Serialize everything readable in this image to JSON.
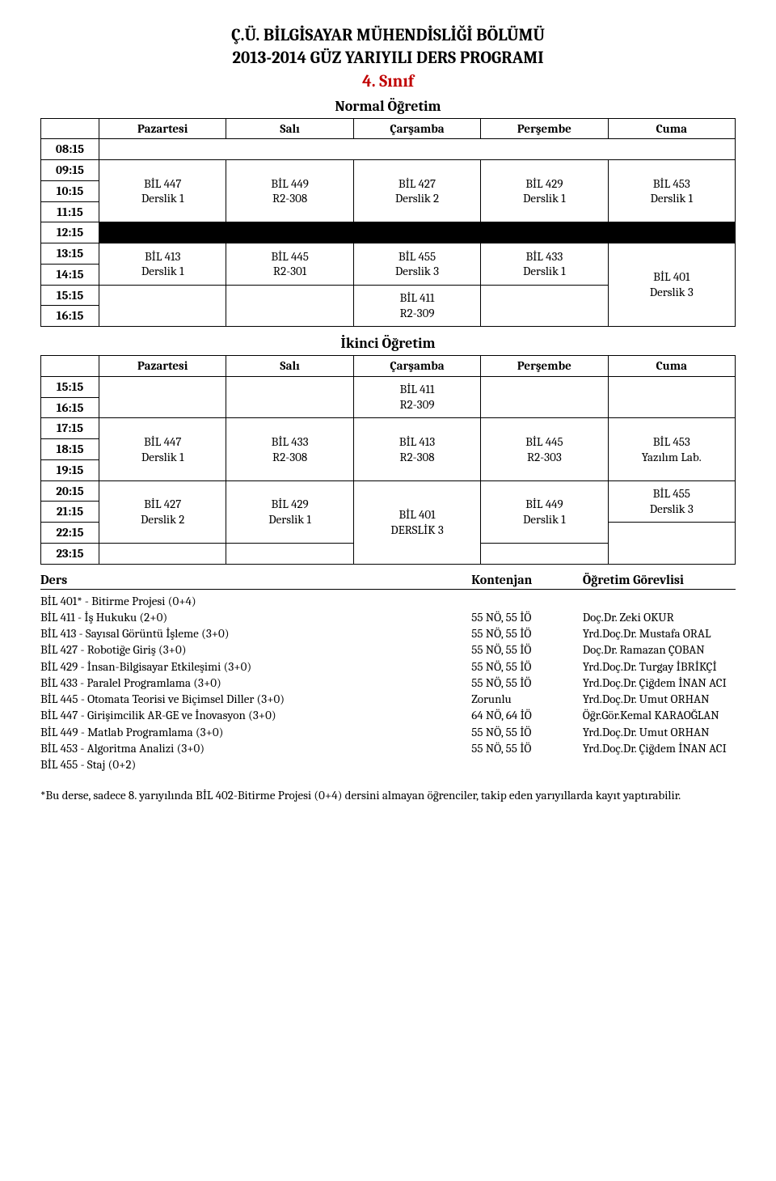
{
  "header": {
    "line1": "Ç.Ü. BİLGİSAYAR MÜHENDİSLİĞİ BÖLÜMÜ",
    "line2": "2013-2014 GÜZ YARIYILI DERS PROGRAMI",
    "year": "4. Sınıf"
  },
  "colors": {
    "year_color": "#c00000",
    "black_row": "#000000"
  },
  "days": [
    "Pazartesi",
    "Salı",
    "Çarşamba",
    "Perşembe",
    "Cuma"
  ],
  "normal": {
    "title": "Normal Öğretim",
    "times": [
      "08:15",
      "09:15",
      "10:15",
      "11:15",
      "12:15",
      "13:15",
      "14:15",
      "15:15",
      "16:15"
    ],
    "block_0915": {
      "mon": {
        "code": "BİL 447",
        "room": "Derslik 1"
      },
      "tue": {
        "code": "BİL 449",
        "room": "R2-308"
      },
      "wed": {
        "code": "BİL 427",
        "room": "Derslik 2"
      },
      "thu": {
        "code": "BİL 429",
        "room": "Derslik 1"
      },
      "fri": {
        "code": "BİL 453",
        "room": "Derslik 1"
      }
    },
    "block_1315": {
      "mon": {
        "code": "BİL 413",
        "room": "Derslik 1"
      },
      "tue": {
        "code": "BİL 445",
        "room": "R2-301"
      },
      "wed_top": {
        "code": "BİL 455",
        "room": "Derslik 3"
      },
      "wed_bot": {
        "code": "BİL 411",
        "room": "R2-309"
      },
      "thu": {
        "code": "BİL 433",
        "room": "Derslik 1"
      },
      "fri": {
        "code": "BİL 401",
        "room": "Derslik 3"
      }
    }
  },
  "ikinci": {
    "title": "İkinci Öğretim",
    "times": [
      "15:15",
      "16:15",
      "17:15",
      "18:15",
      "19:15",
      "20:15",
      "21:15",
      "22:15",
      "23:15"
    ],
    "row1_wed": {
      "code": "BİL 411",
      "room": "R2-309"
    },
    "block_1715": {
      "mon": {
        "code": "BİL 447",
        "room": "Derslik 1"
      },
      "tue": {
        "code": "BİL 433",
        "room": "R2-308"
      },
      "wed": {
        "code": "BİL 413",
        "room": "R2-308"
      },
      "thu": {
        "code": "BİL 445",
        "room": "R2-303"
      },
      "fri": {
        "code": "BİL 453",
        "room": "Yazılım Lab."
      }
    },
    "block_2015": {
      "mon": {
        "code": "BİL 427",
        "room": "Derslik 2"
      },
      "tue": {
        "code": "BİL 429",
        "room": "Derslik 1"
      },
      "wed": {
        "code": "BİL 401",
        "room": "DERSLİK 3"
      },
      "thu": {
        "code": "BİL 449",
        "room": "Derslik 1"
      },
      "fri_top": {
        "code": "BİL 455",
        "room": "Derslik 3"
      }
    }
  },
  "course_list": {
    "headers": {
      "ders": "Ders",
      "kontenjan": "Kontenjan",
      "gorevli": "Öğretim Görevlisi"
    },
    "rows": [
      {
        "name": "BİL 401* - Bitirme Projesi (0+4)",
        "quota": "",
        "inst": ""
      },
      {
        "name": "BİL 411 - İş Hukuku (2+0)",
        "quota": "55 NÖ, 55 İÖ",
        "inst": "Doç.Dr. Zeki OKUR"
      },
      {
        "name": "BİL 413 - Sayısal Görüntü İşleme (3+0)",
        "quota": "55 NÖ, 55 İÖ",
        "inst": "Yrd.Doç.Dr. Mustafa ORAL"
      },
      {
        "name": "BİL 427 - Robotiğe Giriş (3+0)",
        "quota": "55 NÖ, 55 İÖ",
        "inst": "Doç.Dr. Ramazan ÇOBAN"
      },
      {
        "name": "BİL 429 - İnsan-Bilgisayar Etkileşimi (3+0)",
        "quota": "55 NÖ, 55 İÖ",
        "inst": "Yrd.Doç.Dr. Turgay İBRİKÇİ"
      },
      {
        "name": "BİL 433 - Paralel Programlama (3+0)",
        "quota": "55 NÖ, 55 İÖ",
        "inst": "Yrd.Doç.Dr. Çiğdem İNAN ACI"
      },
      {
        "name": "BİL 445 - Otomata Teorisi ve Biçimsel Diller (3+0)",
        "quota": "Zorunlu",
        "inst": "Yrd.Doç.Dr. Umut ORHAN"
      },
      {
        "name": "BİL 447 - Girişimcilik AR-GE ve İnovasyon (3+0)",
        "quota": "64 NÖ, 64 İÖ",
        "inst": "Öğr.Gör.Kemal KARAOĞLAN"
      },
      {
        "name": "BİL 449 - Matlab Programlama (3+0)",
        "quota": "55 NÖ, 55 İÖ",
        "inst": "Yrd.Doç.Dr. Umut ORHAN"
      },
      {
        "name": "BİL 453 - Algoritma Analizi (3+0)",
        "quota": "55 NÖ, 55 İÖ",
        "inst": "Yrd.Doç.Dr. Çiğdem İNAN ACI"
      },
      {
        "name": "BİL 455 - Staj (0+2)",
        "quota": "",
        "inst": ""
      }
    ]
  },
  "footnote": "*Bu derse, sadece 8. yarıyılında BİL 402-Bitirme Projesi (0+4) dersini almayan öğrenciler, takip eden yarıyıllarda kayıt yaptırabilir."
}
